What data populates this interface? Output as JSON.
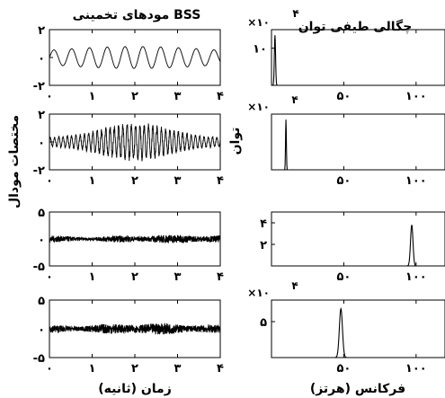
{
  "chart_data": [
    {
      "type": "line",
      "column": "left",
      "title": "مودهای تخمینی BSS",
      "xlabel": "",
      "ylabel": "",
      "xlim": [
        0,
        4
      ],
      "ylim": [
        -2,
        2
      ],
      "x_ticks": [
        "۰",
        "۱",
        "۲",
        "۳",
        "۴"
      ],
      "y_ticks": [
        "۲",
        "۰",
        "-۲"
      ],
      "y_tick_values": [
        2,
        0,
        -2
      ],
      "signal": {
        "kind": "sine",
        "amplitude": 0.75,
        "frequency_hz": 2.4,
        "duration_s": 4
      }
    },
    {
      "type": "line",
      "column": "left",
      "title": "",
      "xlabel": "",
      "ylabel": "",
      "xlim": [
        0,
        4
      ],
      "ylim": [
        -2,
        2
      ],
      "x_ticks": [
        "۰",
        "۱",
        "۲",
        "۳",
        "۴"
      ],
      "y_ticks": [
        "۲",
        "۰",
        "-۲"
      ],
      "y_tick_values": [
        2,
        0,
        -2
      ],
      "signal": {
        "kind": "burst",
        "amplitude": 1.3,
        "frequency_hz": 10,
        "duration_s": 4
      }
    },
    {
      "type": "line",
      "column": "left",
      "title": "",
      "xlabel": "",
      "ylabel": "",
      "xlim": [
        0,
        4
      ],
      "ylim": [
        -5,
        5
      ],
      "x_ticks": [
        "۰",
        "۱",
        "۲",
        "۳",
        "۴"
      ],
      "y_ticks": [
        "۵",
        "۰",
        "-۵"
      ],
      "y_tick_values": [
        5,
        0,
        -5
      ],
      "signal": {
        "kind": "noise",
        "amplitude": 0.8,
        "duration_s": 4
      }
    },
    {
      "type": "line",
      "column": "left",
      "title": "",
      "xlabel": "زمان (ثانیه)",
      "ylabel": "",
      "xlim": [
        0,
        4
      ],
      "ylim": [
        -5,
        5
      ],
      "x_ticks": [
        "۰",
        "۱",
        "۲",
        "۳",
        "۴"
      ],
      "y_ticks": [
        "۵",
        "۰",
        "-۵"
      ],
      "y_tick_values": [
        5,
        0,
        -5
      ],
      "signal": {
        "kind": "noise",
        "amplitude": 1.0,
        "duration_s": 4
      }
    },
    {
      "type": "line",
      "column": "right",
      "title": "چگالی طیفی توان",
      "xlabel": "",
      "ylabel": "",
      "xlim": [
        0,
        120
      ],
      "ylim": [
        0,
        15
      ],
      "x_ticks": [
        "",
        "۵۰",
        "۱۰۰"
      ],
      "x_tick_values": [
        0,
        50,
        100
      ],
      "y_ticks": [
        "۱۰"
      ],
      "y_tick_values": [
        10
      ],
      "multiplier": "×۱۰",
      "exponent": "۴",
      "peak": {
        "frequency": 2.4,
        "height": 13.5,
        "width": 0.6
      }
    },
    {
      "type": "line",
      "column": "right",
      "title": "",
      "xlabel": "",
      "ylabel": "",
      "xlim": [
        0,
        120
      ],
      "ylim": [
        0,
        15
      ],
      "x_ticks": [
        "",
        "۵۰",
        "۱۰۰"
      ],
      "x_tick_values": [
        0,
        50,
        100
      ],
      "y_ticks": [],
      "y_tick_values": [],
      "multiplier": "×۱۰",
      "exponent": "۴",
      "peak": {
        "frequency": 10,
        "height": 13.5,
        "width": 0.4
      }
    },
    {
      "type": "line",
      "column": "right",
      "title": "",
      "xlabel": "",
      "ylabel": "",
      "xlim": [
        0,
        120
      ],
      "ylim": [
        0,
        5
      ],
      "x_ticks": [
        "",
        "۵۰",
        "۱۰۰"
      ],
      "x_tick_values": [
        0,
        50,
        100
      ],
      "y_ticks": [
        "۴",
        "۲"
      ],
      "y_tick_values": [
        4,
        2
      ],
      "multiplier": "",
      "exponent": "",
      "peak": {
        "frequency": 97,
        "height": 3.8,
        "width": 1.2
      }
    },
    {
      "type": "line",
      "column": "right",
      "title": "",
      "xlabel": "فرکانس (هرتز)",
      "ylabel": "",
      "xlim": [
        0,
        120
      ],
      "ylim": [
        0,
        8
      ],
      "x_ticks": [
        "",
        "۵۰",
        "۱۰۰"
      ],
      "x_tick_values": [
        0,
        50,
        100
      ],
      "y_ticks": [
        "۵"
      ],
      "y_tick_values": [
        5
      ],
      "multiplier": "×۱۰",
      "exponent": "۴",
      "peak": {
        "frequency": 48,
        "height": 6.8,
        "width": 1.5
      }
    }
  ],
  "labels": {
    "left_ylabel": "مختصات مودال",
    "right_ylabel": "توان"
  }
}
